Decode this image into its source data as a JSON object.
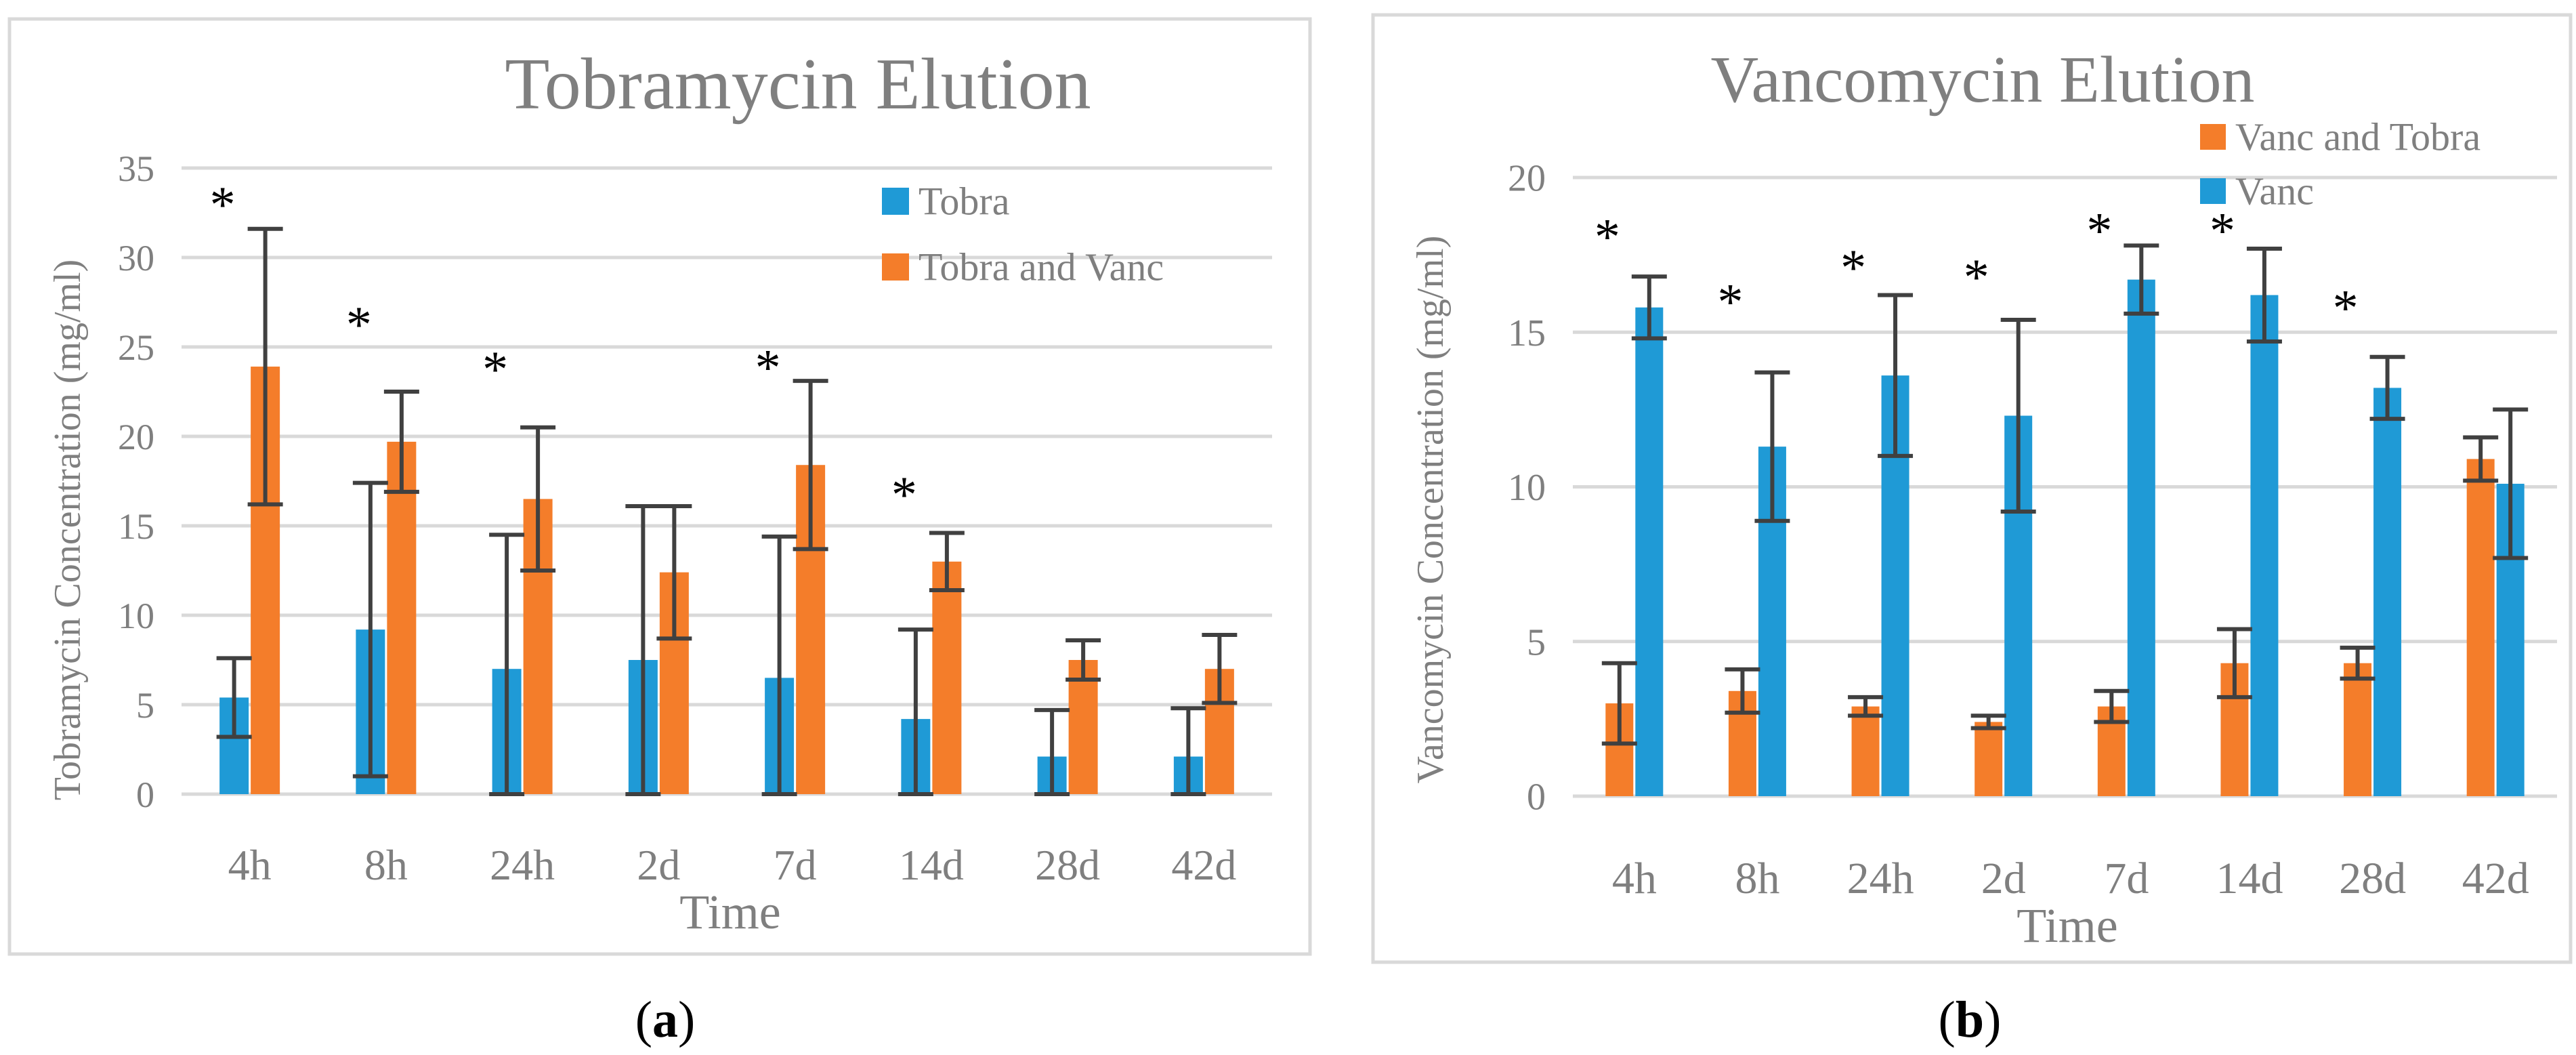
{
  "colors": {
    "tobra_blue": "#1f9ad6",
    "vanc_orange": "#f47d2a",
    "gridline": "#d9d9d9",
    "axis_text": "#7f7f7f",
    "panel_border": "#d9d9d9",
    "error_bar": "#404040"
  },
  "chart_data": [
    {
      "type": "bar",
      "panel_label": "a",
      "title": "Tobramycin Elution",
      "xlabel": "Time",
      "ylabel": "Tobramycin Concentration (mg/ml)",
      "ylim": [
        0,
        35
      ],
      "yticks": [
        "0",
        "5",
        "10",
        "15",
        "20",
        "25",
        "30",
        "35"
      ],
      "grid": true,
      "legend_position": "top-right",
      "categories": [
        "4h",
        "8h",
        "24h",
        "2d",
        "7d",
        "14d",
        "28d",
        "42d"
      ],
      "series": [
        {
          "name": "Tobra",
          "color": "#1f9ad6",
          "values": [
            5.4,
            9.2,
            7.0,
            7.5,
            6.5,
            4.2,
            2.1,
            2.1
          ],
          "errors": [
            2.2,
            8.2,
            7.5,
            8.6,
            7.9,
            5.0,
            2.6,
            2.7
          ]
        },
        {
          "name": "Tobra and Vanc",
          "color": "#f47d2a",
          "values": [
            23.9,
            19.7,
            16.5,
            12.4,
            18.4,
            13.0,
            7.5,
            7.0
          ],
          "errors": [
            7.7,
            2.8,
            4.0,
            3.7,
            4.7,
            1.6,
            1.1,
            1.9
          ]
        }
      ],
      "annotations": [
        {
          "category": "4h",
          "text": "*",
          "y": 33.5
        },
        {
          "category": "8h",
          "text": "*",
          "y": 26.8
        },
        {
          "category": "24h",
          "text": "*",
          "y": 24.3
        },
        {
          "category": "7d",
          "text": "*",
          "y": 24.4
        },
        {
          "category": "14d",
          "text": "*",
          "y": 17.3
        }
      ]
    },
    {
      "type": "bar",
      "panel_label": "b",
      "title": "Vancomycin Elution",
      "xlabel": "Time",
      "ylabel": "Vancomycin Concentration (mg/ml)",
      "ylim": [
        0,
        20
      ],
      "yticks": [
        "0",
        "5",
        "10",
        "15",
        "20"
      ],
      "grid": true,
      "legend_position": "top-right",
      "categories": [
        "4h",
        "8h",
        "24h",
        "2d",
        "7d",
        "14d",
        "28d",
        "42d"
      ],
      "series": [
        {
          "name": "Vanc and Tobra",
          "color": "#f47d2a",
          "values": [
            3.0,
            3.4,
            2.9,
            2.4,
            2.9,
            4.3,
            4.3,
            10.9
          ],
          "errors": [
            1.3,
            0.7,
            0.3,
            0.2,
            0.5,
            1.1,
            0.5,
            0.7
          ]
        },
        {
          "name": "Vanc",
          "color": "#1f9ad6",
          "values": [
            15.8,
            11.3,
            13.6,
            12.3,
            16.7,
            16.2,
            13.2,
            10.1
          ],
          "errors": [
            1.0,
            2.4,
            2.6,
            3.1,
            1.1,
            1.5,
            1.0,
            2.4
          ]
        }
      ],
      "annotations": [
        {
          "category": "4h",
          "text": "*",
          "y": 18.4
        },
        {
          "category": "8h",
          "text": "*",
          "y": 16.3
        },
        {
          "category": "24h",
          "text": "*",
          "y": 17.4
        },
        {
          "category": "2d",
          "text": "*",
          "y": 17.1
        },
        {
          "category": "7d",
          "text": "*",
          "y": 18.6
        },
        {
          "category": "14d",
          "text": "*",
          "y": 18.6
        },
        {
          "category": "28d",
          "text": "*",
          "y": 16.1
        }
      ]
    }
  ]
}
